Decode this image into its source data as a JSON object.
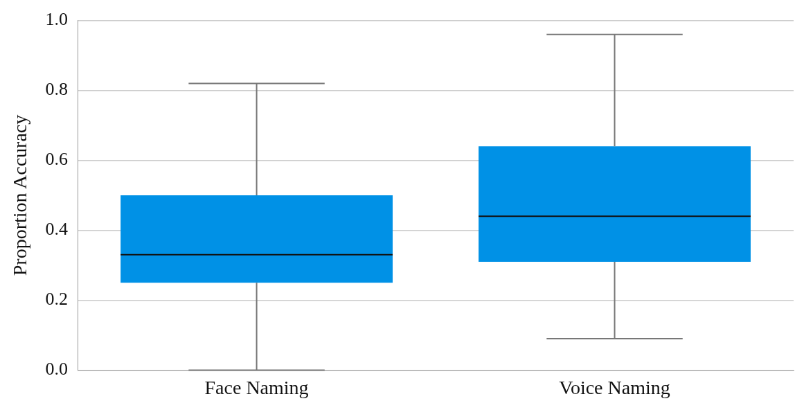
{
  "chart_data": {
    "type": "box",
    "ylabel": "Proportion Accuracy",
    "categories": [
      "Face Naming",
      "Voice Naming"
    ],
    "boxes": [
      {
        "low": 0,
        "q1": 0.25,
        "median": 0.33,
        "q3": 0.5,
        "high": 0.82
      },
      {
        "low": 0.09,
        "q1": 0.31,
        "median": 0.44,
        "q3": 0.64,
        "high": 0.96
      }
    ],
    "color": "#0091e6",
    "ylim": [
      0,
      1.0
    ],
    "yticks": [
      {
        "value": 0,
        "label": "0.0"
      },
      {
        "value": 0.2,
        "label": "0.2"
      },
      {
        "value": 0.4,
        "label": "0.4"
      },
      {
        "value": 0.6,
        "label": "0.6"
      },
      {
        "value": 0.8,
        "label": "0.8"
      },
      {
        "value": 1.0,
        "label": "1.0"
      }
    ],
    "grid": "y"
  }
}
